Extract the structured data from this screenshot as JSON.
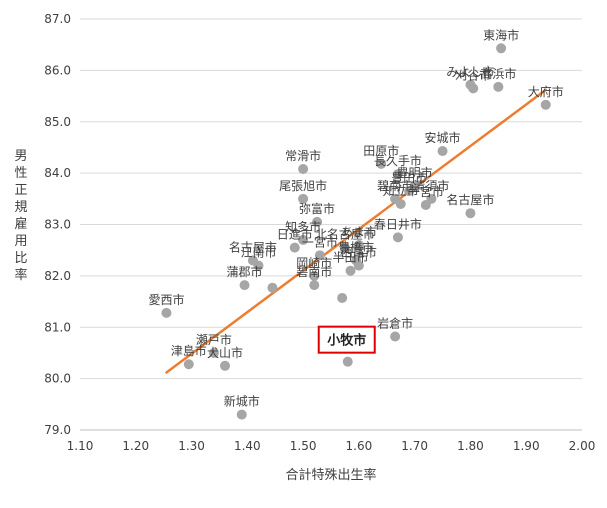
{
  "chart_data": {
    "type": "scatter",
    "title": "",
    "xlabel": "合計特殊出生率",
    "ylabel": "男性正規雇用比率",
    "xlim": [
      1.1,
      2.0
    ],
    "ylim": [
      79.0,
      87.0
    ],
    "x_ticks": [
      "1.10",
      "1.20",
      "1.30",
      "1.40",
      "1.50",
      "1.60",
      "1.70",
      "1.80",
      "1.90",
      "2.00"
    ],
    "y_ticks": [
      "79.0",
      "80.0",
      "81.0",
      "82.0",
      "83.0",
      "84.0",
      "85.0",
      "86.0",
      "87.0"
    ],
    "grid": "horizontal",
    "colors": {
      "points": "#a6a6a6",
      "trendline": "#ed7d31",
      "highlight": "#e00000",
      "gridline": "#d9d9d9",
      "text": "#404040"
    },
    "trendline": {
      "x": [
        1.255,
        1.935
      ],
      "y": [
        80.12,
        85.62
      ]
    },
    "highlight": {
      "label": "小牧市",
      "x": 1.58,
      "y": 80.33
    },
    "points": [
      {
        "x": 1.855,
        "y": 86.43,
        "label": "東海市"
      },
      {
        "x": 1.8,
        "y": 85.72,
        "label": "みよし市"
      },
      {
        "x": 1.805,
        "y": 85.65,
        "label": "刈谷市"
      },
      {
        "x": 1.85,
        "y": 85.68,
        "label": "高浜市"
      },
      {
        "x": 1.935,
        "y": 85.33,
        "label": "大府市"
      },
      {
        "x": 1.75,
        "y": 84.43,
        "label": "安城市"
      },
      {
        "x": 1.64,
        "y": 84.18,
        "label": "田原市"
      },
      {
        "x": 1.67,
        "y": 83.98,
        "label": "長久手市"
      },
      {
        "x": 1.5,
        "y": 84.08,
        "label": "常滑市"
      },
      {
        "x": 1.5,
        "y": 83.5,
        "label": "尾張旭市"
      },
      {
        "x": 1.7,
        "y": 83.75,
        "label": "豊明市"
      },
      {
        "x": 1.69,
        "y": 83.65,
        "label": "豊田市"
      },
      {
        "x": 1.73,
        "y": 83.5,
        "label": "清須市"
      },
      {
        "x": 1.665,
        "y": 83.5,
        "label": "碧南市"
      },
      {
        "x": 1.675,
        "y": 83.4,
        "label": "知立市"
      },
      {
        "x": 1.72,
        "y": 83.38,
        "label": "一宮市"
      },
      {
        "x": 1.8,
        "y": 83.22,
        "label": "名古屋市"
      },
      {
        "x": 1.525,
        "y": 83.05,
        "label": "弥富市"
      },
      {
        "x": 1.67,
        "y": 82.75,
        "label": "春日井市"
      },
      {
        "x": 1.6,
        "y": 82.6,
        "label": "あま市"
      },
      {
        "x": 1.5,
        "y": 82.7,
        "label": "知多市"
      },
      {
        "x": 1.485,
        "y": 82.55,
        "label": "日進市"
      },
      {
        "x": 1.575,
        "y": 82.55,
        "label": "北名古屋市"
      },
      {
        "x": 1.53,
        "y": 82.4,
        "label": "一宮市"
      },
      {
        "x": 1.595,
        "y": 82.3,
        "label": "豊橋市"
      },
      {
        "x": 1.41,
        "y": 82.3,
        "label": "名古屋市"
      },
      {
        "x": 1.6,
        "y": 82.2,
        "label": "西尾市"
      },
      {
        "x": 1.585,
        "y": 82.1,
        "label": "半田市"
      },
      {
        "x": 1.52,
        "y": 82.0,
        "label": "岡崎市"
      },
      {
        "x": 1.42,
        "y": 82.2,
        "label": "江南市"
      },
      {
        "x": 1.52,
        "y": 81.82,
        "label": "碧南市"
      },
      {
        "x": 1.395,
        "y": 81.82,
        "label": "蒲郡市"
      },
      {
        "x": 1.445,
        "y": 81.77,
        "label": ""
      },
      {
        "x": 1.57,
        "y": 81.57,
        "label": ""
      },
      {
        "x": 1.255,
        "y": 81.28,
        "label": "愛西市"
      },
      {
        "x": 1.665,
        "y": 80.82,
        "label": "岩倉市"
      },
      {
        "x": 1.34,
        "y": 80.5,
        "label": "瀬戸市"
      },
      {
        "x": 1.36,
        "y": 80.25,
        "label": "犬山市"
      },
      {
        "x": 1.295,
        "y": 80.28,
        "label": "津島市"
      },
      {
        "x": 1.39,
        "y": 79.3,
        "label": "新城市"
      }
    ]
  }
}
